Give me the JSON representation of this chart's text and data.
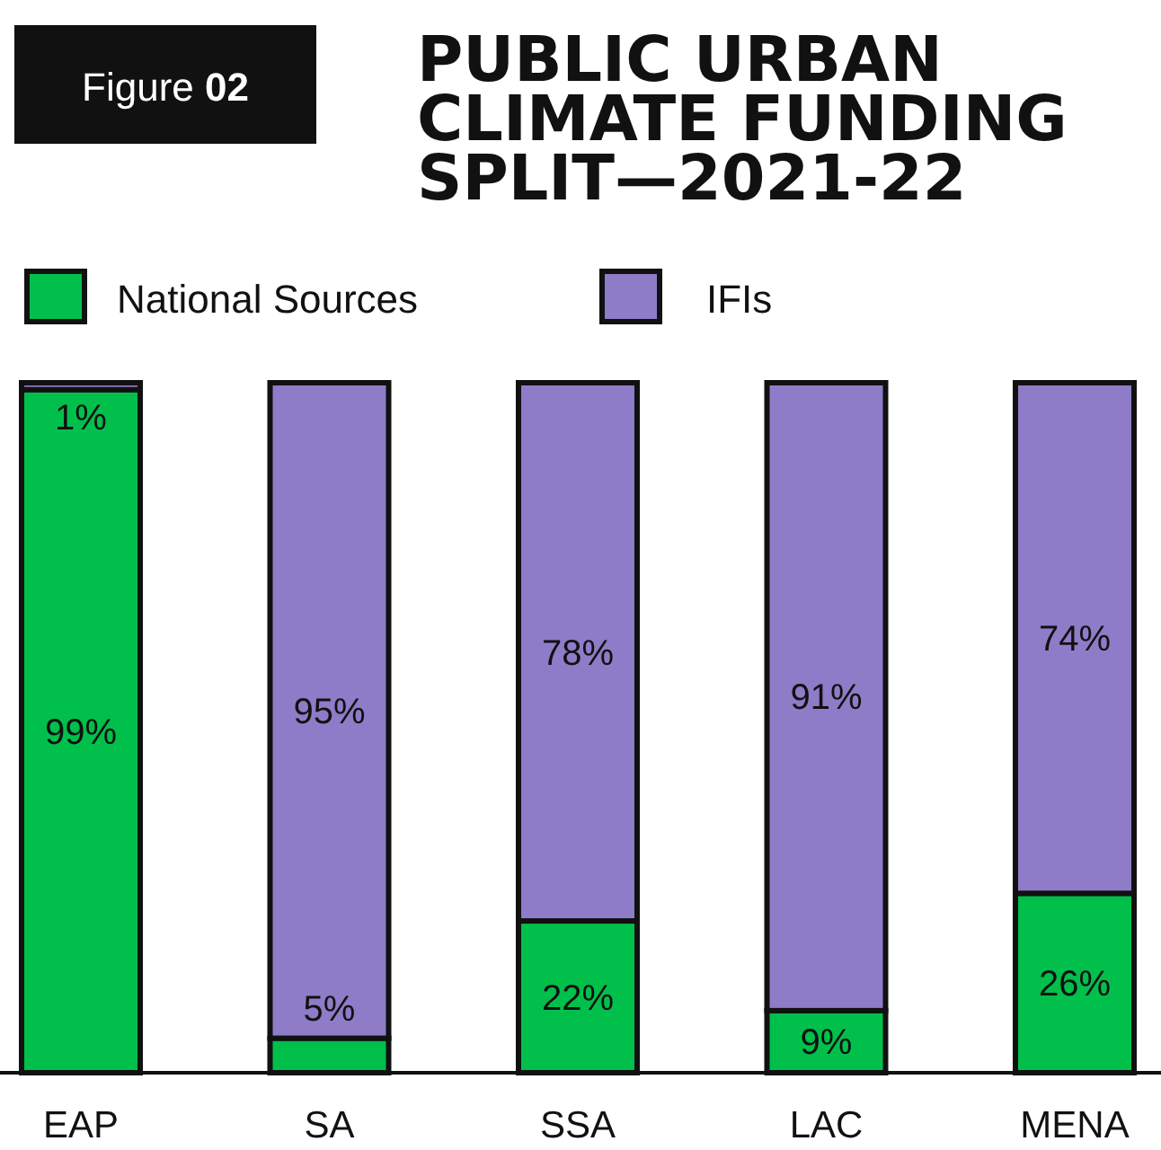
{
  "chart_data": {
    "type": "bar",
    "title": "PUBLIC URBAN CLIMATE FUNDING SPLIT—2021-22",
    "annotations": [
      "Figure 02"
    ],
    "categories": [
      "EAP",
      "SA",
      "SSA",
      "LAC",
      "MENA"
    ],
    "series": [
      {
        "name": "National Sources",
        "color": "#00c04b",
        "values": [
          99,
          5,
          22,
          9,
          26
        ],
        "value_labels": [
          "99%",
          "5%",
          "22%",
          "9%",
          "26%"
        ]
      },
      {
        "name": "IFIs",
        "color": "#8e7cc8",
        "values": [
          1,
          95,
          78,
          91,
          74
        ],
        "value_labels": [
          "1%",
          "95%",
          "78%",
          "91%",
          "74%"
        ]
      }
    ],
    "stacked": true,
    "tick_labels": "x",
    "legend": "top left",
    "grid": false
  }
}
